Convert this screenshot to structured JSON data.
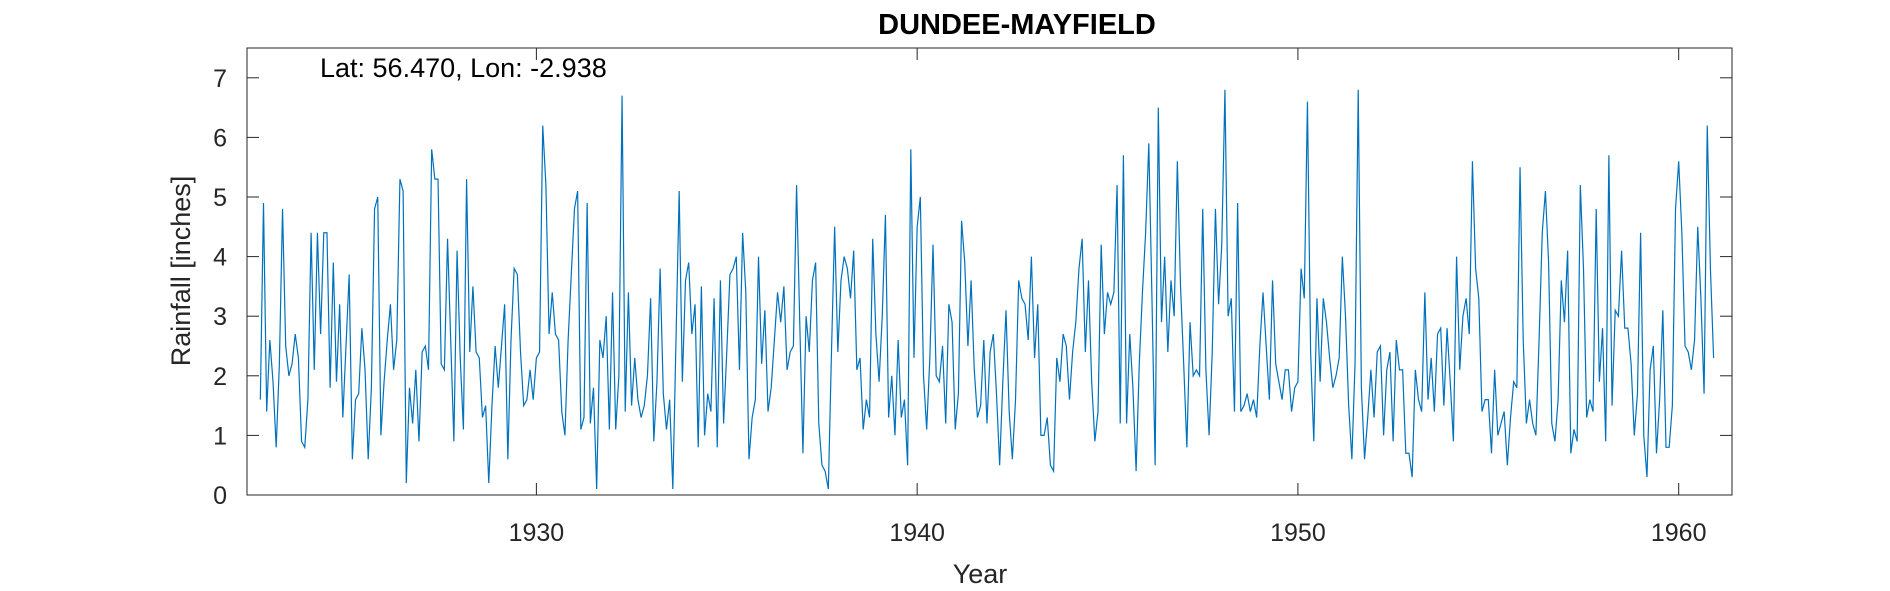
{
  "chart_data": {
    "type": "line",
    "title": "DUNDEE-MAYFIELD",
    "annotation": "Lat: 56.470, Lon: -2.938",
    "xlabel": "Year",
    "ylabel": "Rainfall [inches]",
    "xlim": [
      1922.4,
      1961.4
    ],
    "ylim": [
      0,
      7.5
    ],
    "xticks": [
      1930,
      1940,
      1950,
      1960
    ],
    "yticks": [
      0,
      1,
      2,
      3,
      4,
      5,
      6,
      7
    ],
    "series_color": "#0072BD",
    "grid": false,
    "x_start": 1922.75,
    "x_step": 0.0833333,
    "series": [
      {
        "values": [
          1.6,
          4.9,
          1.4,
          2.6,
          1.9,
          0.8,
          2.2,
          4.8,
          2.5,
          2.0,
          2.2,
          2.7,
          2.3,
          0.9,
          0.8,
          1.6,
          4.4,
          2.1,
          4.4,
          2.7,
          4.4,
          4.4,
          1.8,
          3.9,
          1.9,
          3.2,
          1.3,
          2.5,
          3.7,
          0.6,
          1.6,
          1.7,
          2.8,
          2.1,
          0.6,
          1.8,
          4.8,
          5.0,
          1.0,
          1.9,
          2.6,
          3.2,
          2.1,
          2.6,
          5.3,
          5.1,
          0.2,
          1.8,
          1.2,
          2.1,
          0.9,
          2.4,
          2.5,
          2.1,
          5.8,
          5.3,
          5.3,
          2.2,
          2.1,
          4.3,
          2.6,
          0.9,
          4.1,
          2.3,
          1.1,
          5.3,
          2.4,
          3.5,
          2.4,
          2.3,
          1.3,
          1.5,
          0.2,
          1.5,
          2.5,
          1.8,
          2.5,
          3.2,
          0.6,
          2.6,
          3.8,
          3.7,
          2.4,
          1.5,
          1.6,
          2.1,
          1.6,
          2.3,
          2.4,
          6.2,
          5.2,
          2.7,
          3.4,
          2.7,
          2.6,
          1.4,
          1.0,
          2.6,
          3.7,
          4.8,
          5.1,
          1.1,
          1.3,
          4.9,
          1.2,
          1.8,
          0.1,
          2.6,
          2.3,
          3.0,
          1.1,
          3.4,
          1.1,
          2.0,
          6.7,
          1.4,
          3.4,
          1.5,
          2.3,
          1.6,
          1.3,
          1.5,
          2.0,
          3.3,
          0.9,
          1.9,
          3.8,
          1.7,
          1.1,
          1.6,
          0.1,
          2.6,
          5.1,
          1.9,
          3.6,
          3.9,
          2.7,
          3.2,
          0.8,
          3.5,
          1.0,
          1.7,
          1.4,
          3.3,
          0.8,
          3.6,
          1.2,
          2.4,
          3.7,
          3.8,
          4.0,
          2.1,
          4.4,
          3.4,
          0.6,
          1.3,
          1.6,
          4.0,
          2.2,
          3.1,
          1.4,
          1.8,
          2.6,
          3.4,
          2.9,
          3.5,
          2.1,
          2.4,
          2.5,
          5.2,
          2.9,
          0.7,
          3.0,
          2.4,
          3.6,
          3.9,
          1.2,
          0.5,
          0.4,
          0.1,
          2.4,
          4.5,
          2.4,
          3.6,
          4.0,
          3.8,
          3.3,
          4.1,
          2.1,
          2.3,
          1.1,
          1.6,
          1.3,
          4.3,
          2.7,
          1.9,
          3.0,
          4.7,
          1.3,
          2.0,
          1.0,
          2.6,
          1.3,
          1.6,
          0.5,
          5.8,
          2.3,
          4.5,
          5.0,
          2.0,
          1.1,
          2.3,
          4.2,
          2.0,
          1.9,
          2.5,
          1.2,
          3.2,
          2.9,
          1.1,
          1.7,
          4.6,
          3.9,
          2.5,
          3.6,
          2.1,
          1.3,
          1.5,
          2.6,
          1.2,
          2.4,
          2.7,
          1.7,
          0.5,
          1.9,
          3.1,
          1.4,
          0.6,
          1.6,
          3.6,
          3.3,
          3.2,
          2.6,
          4.0,
          2.3,
          3.2,
          1.0,
          1.0,
          1.3,
          0.5,
          0.4,
          2.3,
          1.9,
          2.7,
          2.5,
          1.6,
          2.4,
          2.9,
          3.8,
          4.3,
          2.4,
          3.6,
          1.9,
          0.9,
          1.4,
          4.2,
          2.7,
          3.4,
          3.2,
          3.4,
          5.2,
          1.2,
          5.7,
          1.2,
          2.7,
          1.8,
          0.4,
          2.2,
          3.4,
          4.4,
          5.9,
          3.3,
          0.5,
          6.5,
          2.9,
          4.0,
          2.4,
          3.6,
          3.0,
          5.6,
          3.5,
          2.2,
          0.8,
          2.9,
          2.0,
          2.1,
          2.0,
          4.8,
          2.1,
          1.0,
          2.4,
          4.8,
          3.2,
          4.2,
          6.8,
          3.0,
          3.3,
          1.4,
          4.9,
          1.4,
          1.5,
          1.7,
          1.4,
          1.6,
          1.3,
          2.5,
          3.4,
          2.5,
          1.6,
          3.6,
          2.2,
          1.9,
          1.6,
          2.1,
          2.1,
          1.4,
          1.8,
          1.9,
          3.8,
          3.3,
          6.6,
          2.4,
          0.9,
          3.3,
          1.9,
          3.3,
          2.9,
          2.3,
          1.8,
          2.0,
          2.3,
          4.0,
          3.0,
          1.5,
          0.6,
          2.2,
          6.8,
          1.8,
          0.6,
          1.3,
          2.1,
          1.3,
          2.4,
          2.5,
          1.0,
          2.1,
          2.4,
          0.9,
          2.6,
          2.1,
          2.1,
          0.7,
          0.7,
          0.3,
          2.1,
          1.6,
          1.4,
          3.4,
          1.6,
          2.3,
          1.4,
          2.7,
          2.8,
          1.5,
          2.8,
          1.9,
          0.9,
          4.0,
          2.1,
          3.0,
          3.3,
          2.7,
          5.6,
          3.8,
          3.3,
          1.4,
          1.6,
          1.6,
          0.7,
          2.1,
          1.0,
          1.2,
          1.4,
          0.5,
          1.3,
          1.9,
          1.8,
          5.5,
          2.6,
          1.2,
          1.6,
          1.2,
          1.0,
          2.6,
          4.4,
          5.1,
          3.9,
          1.2,
          0.9,
          1.6,
          3.6,
          2.9,
          4.1,
          0.7,
          1.1,
          0.9,
          5.2,
          3.8,
          1.3,
          1.6,
          1.4,
          4.8,
          1.9,
          2.8,
          0.9,
          5.7,
          1.5,
          3.1,
          3.0,
          4.1,
          2.8,
          2.8,
          2.2,
          1.0,
          1.7,
          4.4,
          1.0,
          0.3,
          2.1,
          2.5,
          0.7,
          1.6,
          3.1,
          0.8,
          0.8,
          1.5,
          4.8,
          5.6,
          4.4,
          2.5,
          2.4,
          2.1,
          2.6,
          4.5,
          3.3,
          1.7,
          6.2,
          3.8,
          2.3
        ]
      }
    ]
  }
}
